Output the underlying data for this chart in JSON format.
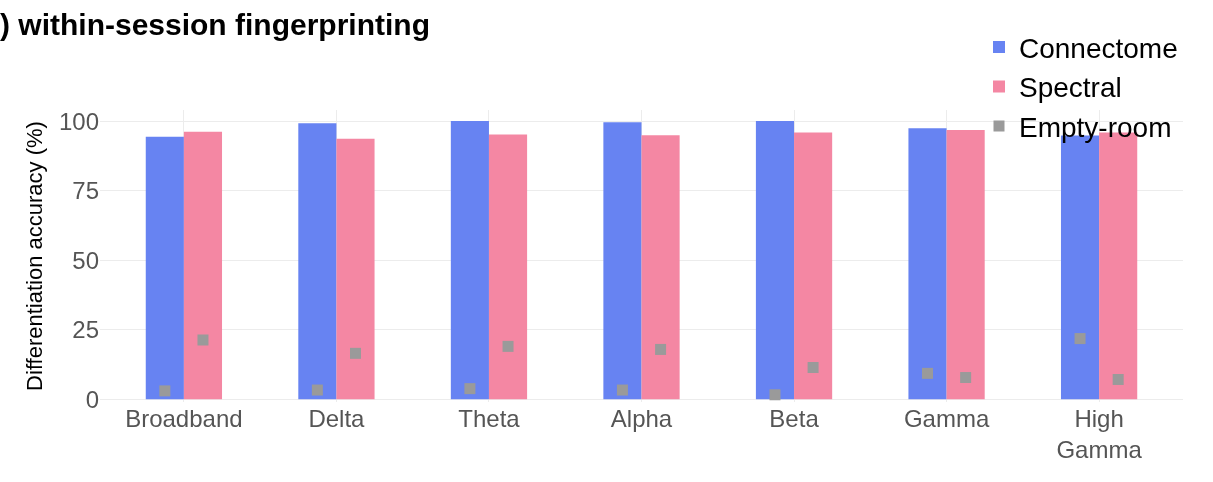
{
  "chart_data": {
    "type": "bar",
    "title": ") within-session fingerprinting",
    "ylabel": "Differentiation accuracy (%)",
    "categories": [
      "Broadband",
      "Delta",
      "Theta",
      "Alpha",
      "Beta",
      "Gamma",
      "High Gamma"
    ],
    "series": [
      {
        "name": "Connectome",
        "color": "#6783f2",
        "values": [
          94.4,
          99.2,
          100,
          99.6,
          100,
          97.4,
          94.8
        ]
      },
      {
        "name": "Spectral",
        "color": "#f487a3",
        "values": [
          96.2,
          93.7,
          95.2,
          94.9,
          95.9,
          96.8,
          95.9
        ]
      },
      {
        "name": "Empty-room",
        "type": "scatter",
        "color": "#9a9a9a",
        "values": [
          3.0,
          3.3,
          3.8,
          3.3,
          1.6,
          9.3,
          21.8
        ]
      },
      {
        "type": "scatter",
        "color": "#9a9a9a",
        "values": [
          21.3,
          16.5,
          19.0,
          17.9,
          11.4,
          7.8,
          7.1
        ]
      }
    ],
    "ylim": [
      -1,
      104
    ],
    "yticks": [
      0,
      25,
      50,
      75,
      100
    ],
    "grid": true,
    "legend": "top right"
  }
}
